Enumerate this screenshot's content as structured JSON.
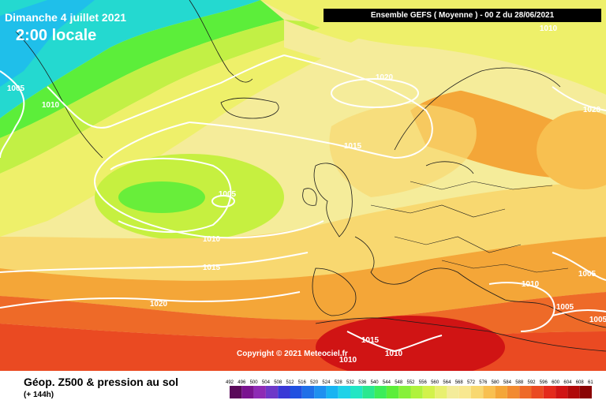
{
  "header": {
    "date": "Dimanche 4 juillet 2021",
    "local_time": "2:00 locale",
    "run_info": "Ensemble GEFS  ( Moyenne )  - 00 Z du 28/06/2021"
  },
  "footer": {
    "product_title": "Géop. Z500 & pression au sol",
    "lead_time": "(+ 144h)",
    "copyright": "Copyright © 2021 Meteociel.fr"
  },
  "isobar_labels": [
    "1010",
    "1005",
    "1010",
    "1020",
    "1015",
    "1020",
    "1005",
    "1010",
    "1015",
    "1020",
    "1010",
    "1005",
    "1005",
    "1015",
    "1010",
    "1010",
    "1005"
  ],
  "scale": {
    "ticks": [
      "492",
      "496",
      "500",
      "504",
      "508",
      "512",
      "516",
      "520",
      "524",
      "528",
      "532",
      "536",
      "540",
      "544",
      "548",
      "552",
      "556",
      "560",
      "564",
      "568",
      "572",
      "576",
      "580",
      "584",
      "588",
      "592",
      "596",
      "600",
      "604",
      "608",
      "612"
    ],
    "colors": [
      "#5a0a5a",
      "#7a1490",
      "#8e2bb5",
      "#6e38c8",
      "#3a38d6",
      "#2050e0",
      "#1f6fe8",
      "#1e90f0",
      "#18b4f2",
      "#1fd2e8",
      "#22e6c4",
      "#2ae890",
      "#3ced5a",
      "#5cee3a",
      "#86f03a",
      "#b0f23c",
      "#d2f24a",
      "#e8f070",
      "#f4ec9a",
      "#f8e890",
      "#f8d870",
      "#f8c050",
      "#f4a638",
      "#f28a30",
      "#ee6a28",
      "#ea4a22",
      "#e42a1c",
      "#d01414",
      "#b00a0a",
      "#8a0404"
    ]
  }
}
